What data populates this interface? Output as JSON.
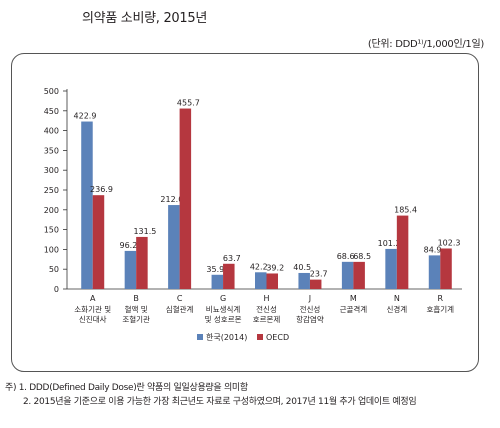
{
  "header": {
    "title": "의약품 소비량, 2015년",
    "unit": "(단위: DDD¹⁾/1,000인/1일)"
  },
  "chart_data": {
    "type": "bar",
    "categories": [
      {
        "code": "A",
        "lines": [
          "소화기관 및",
          "신진대사"
        ]
      },
      {
        "code": "B",
        "lines": [
          "혈액 및",
          "조혈기관"
        ]
      },
      {
        "code": "C",
        "lines": [
          "심혈관계"
        ]
      },
      {
        "code": "G",
        "lines": [
          "비뇨생식계",
          "및 성호르몬"
        ]
      },
      {
        "code": "H",
        "lines": [
          "전신성",
          "호르몬제"
        ]
      },
      {
        "code": "J",
        "lines": [
          "전신성",
          "항감염약"
        ]
      },
      {
        "code": "M",
        "lines": [
          "근골격계"
        ]
      },
      {
        "code": "N",
        "lines": [
          "신경계"
        ]
      },
      {
        "code": "R",
        "lines": [
          "호흡기계"
        ]
      }
    ],
    "series": [
      {
        "name": "한국(2014)",
        "color": "#5b82b9",
        "values": [
          422.9,
          96.2,
          212.0,
          35.9,
          42.2,
          40.5,
          68.6,
          101.2,
          84.9
        ]
      },
      {
        "name": "OECD",
        "color": "#b5373f",
        "values": [
          236.9,
          131.5,
          455.7,
          63.7,
          39.2,
          23.7,
          68.5,
          185.4,
          102.3
        ]
      }
    ],
    "value_labels": [
      [
        "422.9",
        "96.2",
        "212.0",
        "35.9",
        "42.2",
        "40.5",
        "68.6",
        "101.2",
        "84.9"
      ],
      [
        "236.9",
        "131.5",
        "455.7",
        "63.7",
        "39.2",
        "23.7",
        "68.5",
        "185.4",
        "102.3"
      ]
    ],
    "yticks": [
      0,
      50,
      100,
      150,
      200,
      250,
      300,
      350,
      400,
      450,
      500
    ],
    "ylim": [
      0,
      500
    ],
    "grid": false,
    "legend_position": "bottom-center"
  },
  "notes": {
    "line1": "주) 1. DDD(Defined Daily Dose)란 약품의 일일상용량을 의미함",
    "line2": "2. 2015년을 기준으로 이용 가능한 가장 최근년도 자료로 구성하였으며, 2017년 11월 추가 업데이트 예정임"
  }
}
